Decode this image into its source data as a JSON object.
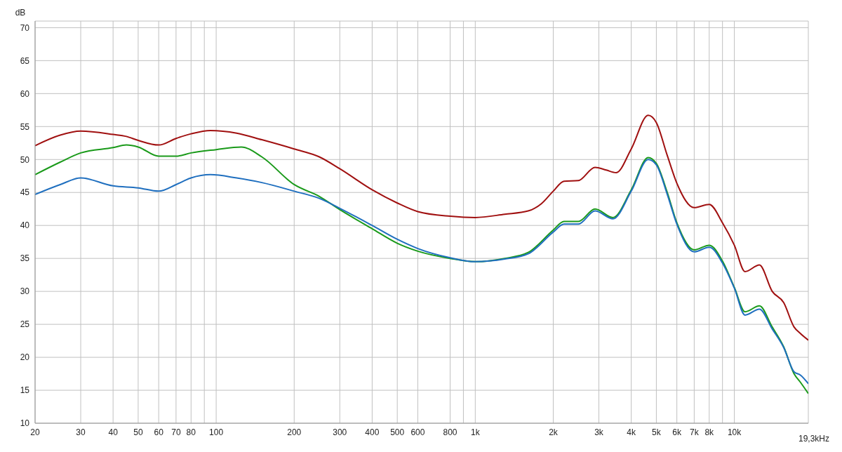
{
  "chart_data": {
    "type": "line",
    "ylabel": "dB",
    "log": "x",
    "grid": true,
    "marker": "none",
    "line_style": "solid",
    "xlim": [
      20,
      19300
    ],
    "ylim": [
      10,
      71
    ],
    "xticks": [
      20,
      30,
      40,
      50,
      60,
      70,
      80,
      {
        "value": 90,
        "label": null
      },
      100,
      200,
      300,
      400,
      500,
      600,
      800,
      {
        "value": 900,
        "label": null
      },
      {
        "value": 1000,
        "label": "1k"
      },
      {
        "value": 2000,
        "label": "2k"
      },
      {
        "value": 3000,
        "label": "3k"
      },
      {
        "value": 4000,
        "label": "4k"
      },
      {
        "value": 5000,
        "label": "5k"
      },
      {
        "value": 6000,
        "label": "6k"
      },
      {
        "value": 7000,
        "label": "7k"
      },
      {
        "value": 8000,
        "label": "8k"
      },
      {
        "value": 9000,
        "label": null
      },
      {
        "value": 10000,
        "label": "10k"
      },
      {
        "value": 19300,
        "label": null
      }
    ],
    "xlabel": "19,3kHz",
    "yticks": [
      10,
      15,
      20,
      25,
      30,
      35,
      40,
      45,
      50,
      55,
      60,
      65,
      70
    ],
    "series": [
      {
        "color": "#a01010",
        "x": [
          20,
          25,
          30,
          40,
          45,
          50,
          60,
          70,
          80,
          95,
          120,
          150,
          200,
          250,
          300,
          400,
          500,
          600,
          800,
          1000,
          1300,
          1600,
          1800,
          2000,
          2200,
          2500,
          2900,
          3200,
          3500,
          4000,
          4650,
          5000,
          5500,
          6000,
          7000,
          8000,
          9000,
          10000,
          11000,
          12500,
          14000,
          15500,
          17000,
          18000,
          19300
        ],
        "values": [
          52.1,
          53.7,
          54.3,
          53.8,
          53.5,
          52.9,
          52.2,
          53.2,
          53.9,
          54.4,
          54.0,
          53.0,
          51.6,
          50.4,
          48.6,
          45.4,
          43.4,
          42.1,
          41.4,
          41.2,
          41.7,
          42.2,
          43.3,
          45.2,
          46.7,
          46.8,
          48.8,
          48.4,
          48.0,
          51.6,
          56.7,
          55.6,
          50.7,
          46.4,
          42.7,
          43.2,
          40.4,
          37.0,
          33.0,
          34.0,
          30.0,
          28.3,
          24.6,
          23.6,
          22.6
        ]
      },
      {
        "color": "#1a9a1a",
        "x": [
          20,
          25,
          30,
          40,
          45,
          50,
          60,
          70,
          80,
          100,
          125,
          150,
          200,
          250,
          300,
          400,
          500,
          600,
          800,
          1000,
          1300,
          1600,
          2000,
          2200,
          2500,
          2900,
          3400,
          4000,
          4650,
          5000,
          5500,
          6000,
          7000,
          8000,
          9000,
          10000,
          11000,
          12500,
          14000,
          15500,
          17000,
          18000,
          19300
        ],
        "values": [
          47.7,
          49.6,
          51.0,
          51.8,
          52.2,
          51.9,
          50.5,
          50.5,
          51.0,
          51.5,
          51.9,
          50.4,
          46.2,
          44.4,
          42.4,
          39.5,
          37.3,
          36.1,
          35.0,
          34.5,
          35.0,
          35.9,
          39.3,
          40.6,
          40.6,
          42.5,
          41.2,
          45.4,
          50.3,
          49.4,
          45.1,
          40.4,
          36.3,
          37.0,
          34.6,
          30.6,
          26.9,
          27.8,
          24.6,
          21.6,
          17.5,
          16.2,
          14.5
        ]
      },
      {
        "color": "#1f6fbf",
        "x": [
          20,
          25,
          30,
          40,
          50,
          60,
          70,
          80,
          95,
          120,
          150,
          200,
          250,
          300,
          400,
          500,
          600,
          800,
          1000,
          1300,
          1600,
          2000,
          2200,
          2500,
          2900,
          3400,
          4000,
          4650,
          5000,
          5500,
          6000,
          7000,
          8000,
          9000,
          10000,
          11000,
          12500,
          14000,
          15500,
          17000,
          18000,
          19300
        ],
        "values": [
          44.7,
          46.2,
          47.2,
          46.0,
          45.7,
          45.2,
          46.2,
          47.2,
          47.7,
          47.2,
          46.5,
          45.2,
          44.1,
          42.6,
          40.0,
          37.9,
          36.5,
          35.1,
          34.5,
          34.9,
          35.7,
          39.0,
          40.2,
          40.2,
          42.2,
          41.0,
          45.2,
          50.0,
          49.2,
          44.8,
          40.2,
          36.0,
          36.7,
          34.3,
          30.5,
          26.4,
          27.3,
          24.3,
          21.5,
          17.8,
          17.3,
          16.0
        ]
      }
    ]
  }
}
